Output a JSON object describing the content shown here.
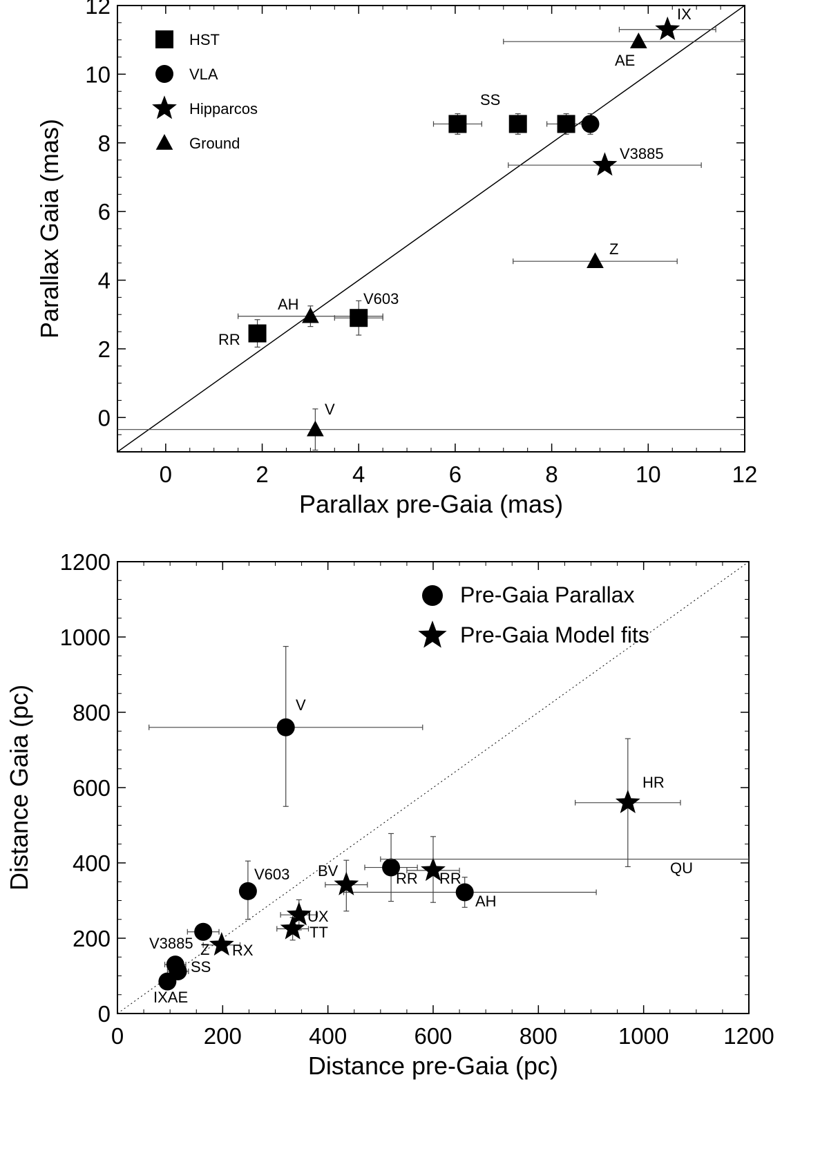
{
  "chart_data": [
    {
      "type": "scatter",
      "xlabel": "Parallax pre-Gaia (mas)",
      "ylabel": "Parallax Gaia (mas)",
      "xlim": [
        -1,
        12
      ],
      "ylim": [
        -1,
        12
      ],
      "xticks": [
        "0",
        "2",
        "4",
        "6",
        "8",
        "10",
        "12"
      ],
      "yticks": [
        "0",
        "2",
        "4",
        "6",
        "8",
        "10",
        "12"
      ],
      "legend": [
        {
          "name": "HST",
          "marker": "square"
        },
        {
          "name": "VLA",
          "marker": "circle"
        },
        {
          "name": "Hipparcos",
          "marker": "star"
        },
        {
          "name": "Ground",
          "marker": "triangle"
        }
      ],
      "reference_line": "y = x",
      "points": [
        {
          "label": "",
          "marker": "star",
          "x": 10.4,
          "y": 11.3,
          "xerr": 1.0,
          "yerr": 0
        },
        {
          "label": "",
          "marker": "triangle",
          "x": 9.8,
          "y": 10.95,
          "xerr": 2.8,
          "yerr": 0
        },
        {
          "label": "",
          "marker": "square",
          "x": 6.05,
          "y": 8.55,
          "xerr": 0.5,
          "yerr": 0.3
        },
        {
          "label": "",
          "marker": "square",
          "x": 7.3,
          "y": 8.55,
          "xerr": 0.1,
          "yerr": 0.3
        },
        {
          "label": "",
          "marker": "square",
          "x": 8.3,
          "y": 8.55,
          "xerr": 0.4,
          "yerr": 0.3
        },
        {
          "label": "",
          "marker": "circle",
          "x": 8.8,
          "y": 8.55,
          "xerr": 0.1,
          "yerr": 0.3
        },
        {
          "label": "",
          "marker": "star",
          "x": 9.1,
          "y": 7.35,
          "xerr": 2.0,
          "yerr": 0
        },
        {
          "label": "",
          "marker": "triangle",
          "x": 8.9,
          "y": 4.55,
          "xerr": 1.7,
          "yerr": 0
        },
        {
          "label": "",
          "marker": "triangle",
          "x": 3.0,
          "y": 2.95,
          "xerr": 1.5,
          "yerr": 0.3
        },
        {
          "label": "",
          "marker": "square",
          "x": 4.0,
          "y": 2.9,
          "xerr": 0.5,
          "yerr": 0.5
        },
        {
          "label": "",
          "marker": "square",
          "x": 1.9,
          "y": 2.45,
          "xerr": 0,
          "yerr": 0.4
        },
        {
          "label": "",
          "marker": "triangle",
          "x": 3.1,
          "y": -0.35,
          "xerr": 12,
          "yerr": 0.6
        }
      ],
      "annotations": [
        "IX",
        "AE",
        "SS",
        "V3885",
        "Z",
        "AH",
        "V603",
        "RR",
        "V"
      ]
    },
    {
      "type": "scatter",
      "xlabel": "Distance pre-Gaia (pc)",
      "ylabel": "Distance Gaia (pc)",
      "xlim": [
        0,
        1200
      ],
      "ylim": [
        0,
        1200
      ],
      "xticks": [
        "0",
        "200",
        "400",
        "600",
        "800",
        "1000",
        "1200"
      ],
      "yticks": [
        "0",
        "200",
        "400",
        "600",
        "800",
        "1000",
        "1200"
      ],
      "legend": [
        {
          "name": "Pre-Gaia Parallax",
          "marker": "circle"
        },
        {
          "name": "Pre-Gaia Model fits",
          "marker": "star"
        }
      ],
      "reference_line": "y = x (dotted)",
      "points": [
        {
          "label": "",
          "marker": "circle",
          "x": 320,
          "y": 760,
          "xerr_lo": 260,
          "xerr_hi": 260,
          "yerr_lo": 210,
          "yerr_hi": 215
        },
        {
          "label": "",
          "marker": "star",
          "x": 970,
          "y": 560,
          "xerr_lo": 100,
          "xerr_hi": 100,
          "yerr_lo": 170,
          "yerr_hi": 170
        },
        {
          "label": "",
          "marker": "circle",
          "x": 520,
          "y": 388,
          "xerr_lo": 50,
          "xerr_hi": 50,
          "yerr_lo": 90,
          "yerr_hi": 90
        },
        {
          "label": "",
          "marker": "star",
          "x": 600,
          "y": 380,
          "xerr_lo": 50,
          "xerr_hi": 50,
          "yerr_lo": 85,
          "yerr_hi": 90
        },
        {
          "label": "",
          "marker": "circle",
          "x": 660,
          "y": 322,
          "xerr_lo": 230,
          "xerr_hi": 250,
          "yerr_lo": 40,
          "yerr_hi": 40
        },
        {
          "label": "",
          "marker": "star",
          "x": 435,
          "y": 342,
          "xerr_lo": 40,
          "xerr_hi": 40,
          "yerr_lo": 70,
          "yerr_hi": 65
        },
        {
          "label": "",
          "marker": "circle",
          "x": 248,
          "y": 325,
          "xerr_lo": 5,
          "xerr_hi": 5,
          "yerr_lo": 75,
          "yerr_hi": 80
        },
        {
          "label": "",
          "marker": "star",
          "x": 345,
          "y": 262,
          "xerr_lo": 35,
          "xerr_hi": 35,
          "yerr_lo": 40,
          "yerr_hi": 40
        },
        {
          "label": "",
          "marker": "star",
          "x": 333,
          "y": 225,
          "xerr_lo": 30,
          "xerr_hi": 30,
          "yerr_lo": 30,
          "yerr_hi": 30
        },
        {
          "label": "",
          "marker": "circle",
          "x": 163,
          "y": 217,
          "xerr_lo": 30,
          "xerr_hi": 30,
          "yerr_lo": 20,
          "yerr_hi": 20
        },
        {
          "label": "",
          "marker": "star",
          "x": 198,
          "y": 182,
          "xerr_lo": 35,
          "xerr_hi": 35,
          "yerr_lo": 15,
          "yerr_hi": 15
        },
        {
          "label": "",
          "marker": "circle",
          "x": 110,
          "y": 130,
          "xerr_lo": 20,
          "xerr_hi": 20,
          "yerr_lo": 10,
          "yerr_hi": 10
        },
        {
          "label": "",
          "marker": "circle",
          "x": 115,
          "y": 112,
          "xerr_lo": 20,
          "xerr_hi": 20,
          "yerr_lo": 10,
          "yerr_hi": 10
        },
        {
          "label": "",
          "marker": "circle",
          "x": 95,
          "y": 85,
          "xerr_lo": 15,
          "xerr_hi": 15,
          "yerr_lo": 10,
          "yerr_hi": 10
        },
        {
          "label": "",
          "marker": "none",
          "x": 900,
          "y": 410,
          "xerr_lo": 400,
          "xerr_hi": 300,
          "yerr_lo": 0,
          "yerr_hi": 0
        }
      ],
      "annotations": [
        "V",
        "HR",
        "QU",
        "RR",
        "RR",
        "AH",
        "BV",
        "UX",
        "TT",
        "V603",
        "Z",
        "RX",
        "V3885",
        "SS",
        "IXAE"
      ]
    }
  ]
}
